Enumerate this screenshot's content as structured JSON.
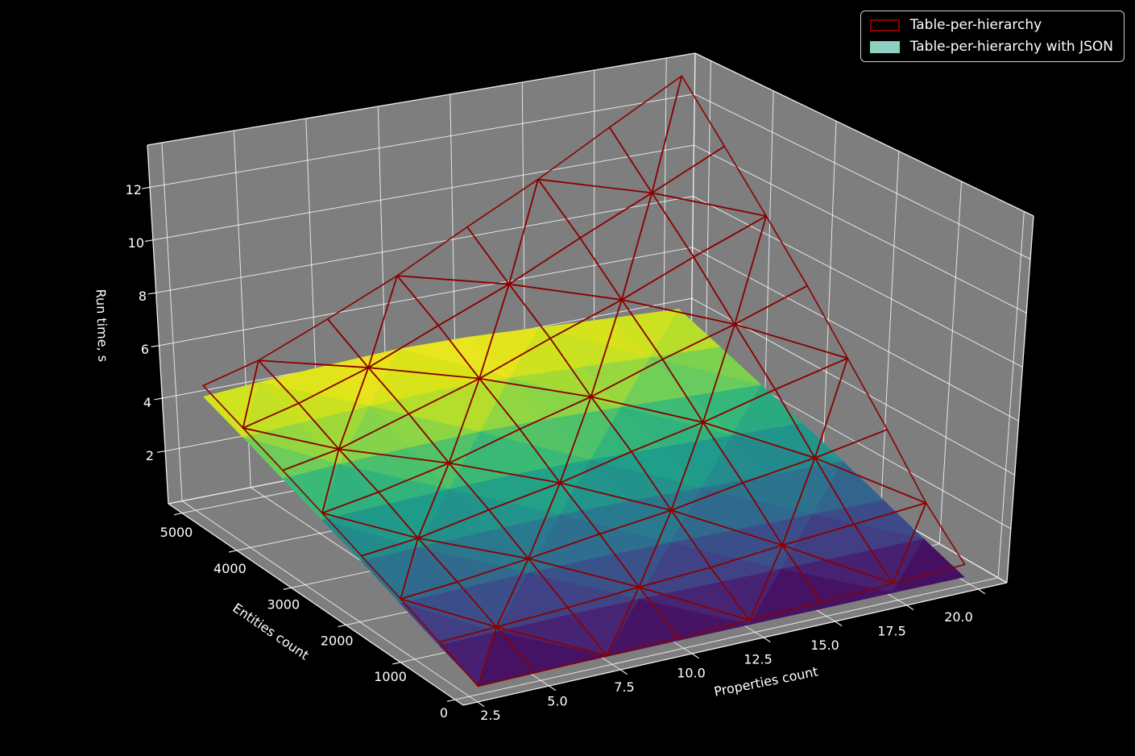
{
  "figure": {
    "background": "#000000"
  },
  "legend": {
    "entries": [
      {
        "label": "Table-per-hierarchy",
        "swatch_type": "outline",
        "swatch_color": "#8B0000"
      },
      {
        "label": "Table-per-hierarchy with JSON",
        "swatch_type": "fill",
        "swatch_color": "#8ED1C3"
      }
    ]
  },
  "chart_data": {
    "type": "surface3d",
    "title": "",
    "xlabel": "Properties count",
    "ylabel": "Entities count",
    "zlabel": "Run time, s",
    "x": [
      3,
      5,
      7.5,
      10,
      12.5,
      15,
      17.5,
      20
    ],
    "y": [
      100,
      800,
      1500,
      2200,
      2900,
      3600,
      4300,
      5000
    ],
    "xlim": [
      2.0,
      21.0
    ],
    "ylim": [
      -150,
      5250
    ],
    "zlim": [
      0,
      13.6
    ],
    "xticks": {
      "values": [
        2.5,
        5,
        7.5,
        10,
        12.5,
        15,
        17.5,
        20
      ],
      "labels": [
        "2.5",
        "5.0",
        "7.5",
        "10.0",
        "12.5",
        "15.0",
        "17.5",
        "20.0"
      ]
    },
    "yticks": {
      "values": [
        0,
        1000,
        2000,
        3000,
        4000,
        5000
      ],
      "labels": [
        "0",
        "1000",
        "2000",
        "3000",
        "4000",
        "5000"
      ]
    },
    "zticks": {
      "values": [
        2,
        4,
        6,
        8,
        10,
        12
      ],
      "labels": [
        "2",
        "4",
        "6",
        "8",
        "10",
        "12"
      ]
    },
    "grid": true,
    "legend_position": "upper right",
    "pane_color": "#7e7e7e",
    "grid_color": "#ffffff",
    "series": [
      {
        "name": "Table-per-hierarchy",
        "style": "wireframe",
        "color": "#8B0000",
        "z": [
          [
            0.12,
            0.15,
            0.19,
            0.25,
            0.31,
            0.39,
            0.49,
            0.6
          ],
          [
            0.78,
            0.88,
            1.02,
            1.2,
            1.35,
            1.6,
            1.8,
            2.02
          ],
          [
            1.42,
            1.6,
            1.9,
            2.25,
            2.57,
            3.03,
            3.4,
            3.9
          ],
          [
            2.06,
            2.28,
            2.78,
            3.24,
            3.86,
            4.41,
            5.1,
            5.73
          ],
          [
            2.7,
            3.05,
            3.6,
            4.34,
            5.02,
            5.9,
            6.7,
            7.63
          ],
          [
            3.34,
            3.72,
            4.52,
            5.33,
            6.33,
            7.28,
            8.4,
            9.45
          ],
          [
            3.98,
            4.5,
            5.34,
            6.43,
            7.5,
            8.77,
            10.0,
            11.3
          ],
          [
            4.62,
            5.18,
            6.26,
            7.42,
            8.8,
            10.15,
            11.68,
            13.2
          ]
        ]
      },
      {
        "name": "Table-per-hierarchy with JSON",
        "style": "surface",
        "colormap": "viridis",
        "z": [
          [
            0.14,
            0.15,
            0.16,
            0.16,
            0.16,
            0.15,
            0.15,
            0.14
          ],
          [
            0.66,
            0.7,
            0.73,
            0.74,
            0.72,
            0.7,
            0.68,
            0.66
          ],
          [
            1.25,
            1.31,
            1.36,
            1.38,
            1.35,
            1.31,
            1.27,
            1.23
          ],
          [
            1.86,
            1.92,
            1.99,
            2.03,
            2.0,
            1.93,
            1.87,
            1.81
          ],
          [
            2.44,
            2.52,
            2.61,
            2.67,
            2.63,
            2.55,
            2.46,
            2.38
          ],
          [
            3.02,
            3.14,
            3.24,
            3.31,
            3.27,
            3.17,
            3.06,
            2.95
          ],
          [
            3.62,
            3.74,
            3.87,
            3.96,
            3.91,
            3.79,
            3.65,
            3.52
          ],
          [
            4.2,
            4.35,
            4.5,
            4.61,
            4.56,
            4.41,
            4.25,
            4.1
          ]
        ]
      }
    ]
  }
}
